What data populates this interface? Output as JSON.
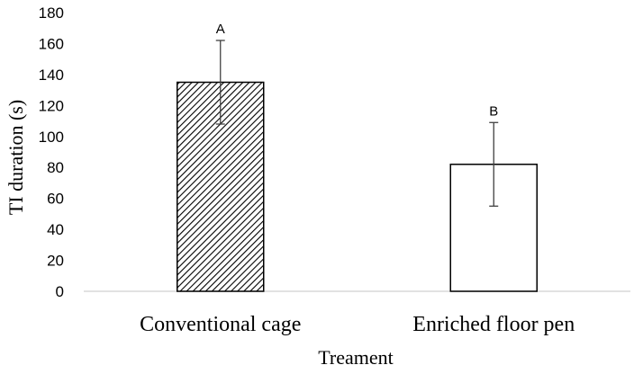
{
  "chart_data": {
    "type": "bar",
    "categories": [
      "Conventional cage",
      "Enriched floor pen"
    ],
    "values": [
      135,
      82
    ],
    "error": [
      27,
      27
    ],
    "significance_labels": [
      "A",
      "B"
    ],
    "bar_styles": [
      "hatched",
      "white"
    ],
    "title": "",
    "xlabel": "Treament",
    "ylabel": "TI duration (s)",
    "ylim": [
      0,
      180
    ],
    "yticks": [
      0,
      20,
      40,
      60,
      80,
      100,
      120,
      140,
      160,
      180
    ],
    "grid": false,
    "legend": "none"
  },
  "colors": {
    "bar_stroke": "#000000",
    "bar_fill": "#ffffff",
    "axis": "#d9d9d9",
    "error_bar": "#404040"
  }
}
